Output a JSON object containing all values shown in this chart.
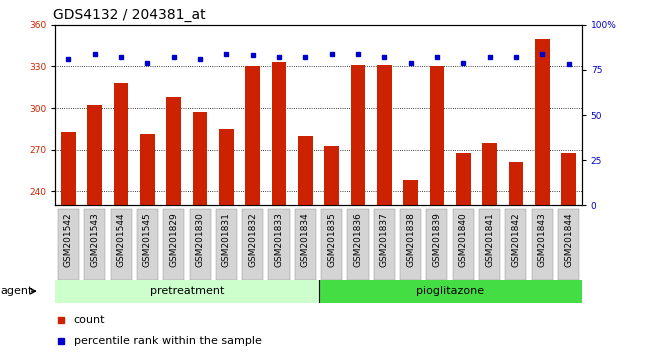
{
  "title": "GDS4132 / 204381_at",
  "samples": [
    "GSM201542",
    "GSM201543",
    "GSM201544",
    "GSM201545",
    "GSM201829",
    "GSM201830",
    "GSM201831",
    "GSM201832",
    "GSM201833",
    "GSM201834",
    "GSM201835",
    "GSM201836",
    "GSM201837",
    "GSM201838",
    "GSM201839",
    "GSM201840",
    "GSM201841",
    "GSM201842",
    "GSM201843",
    "GSM201844"
  ],
  "counts": [
    283,
    302,
    318,
    281,
    308,
    297,
    285,
    330,
    333,
    280,
    273,
    331,
    331,
    248,
    330,
    268,
    275,
    261,
    350,
    268
  ],
  "percentile_ranks": [
    81,
    84,
    82,
    79,
    82,
    81,
    84,
    83,
    82,
    82,
    84,
    84,
    82,
    79,
    82,
    79,
    82,
    82,
    84,
    78
  ],
  "ylim_left": [
    230,
    360
  ],
  "ylim_right": [
    0,
    100
  ],
  "yticks_left": [
    240,
    270,
    300,
    330,
    360
  ],
  "yticks_right": [
    0,
    25,
    50,
    75,
    100
  ],
  "bar_color": "#cc2200",
  "dot_color": "#0000cc",
  "pretreatment_color": "#ccffcc",
  "pioglitazone_color": "#44dd44",
  "pretreatment_samples": 10,
  "pioglitazone_samples": 10,
  "ylabel_left_color": "#cc2200",
  "ylabel_right_color": "#0000cc",
  "title_fontsize": 10,
  "tick_fontsize": 6.5,
  "label_fontsize": 8,
  "legend_fontsize": 8
}
